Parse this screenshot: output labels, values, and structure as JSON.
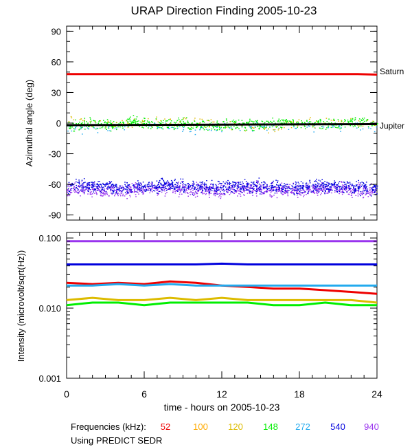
{
  "chart_data": [
    {
      "type": "scatter",
      "title": "URAP Direction Finding  2005-10-23",
      "ylabel": "Azimuthal angle (deg)",
      "xlim": [
        0,
        24
      ],
      "ylim": [
        -95,
        95
      ],
      "x_ticks": [
        0,
        6,
        12,
        18,
        24
      ],
      "y_ticks": [
        90,
        60,
        30,
        0,
        -30,
        -60,
        -90
      ],
      "y_tick_labels": [
        "90",
        "60",
        "30",
        "0",
        "-30",
        "-60",
        "-90"
      ],
      "reference_lines": [
        {
          "label": "Saturn",
          "color": "#ee0000",
          "x": [
            0,
            22.5,
            24
          ],
          "y": [
            48,
            48,
            47.5
          ]
        },
        {
          "label": "Jupiter",
          "color": "#000000",
          "x": [
            0,
            24
          ],
          "y": [
            -2,
            -1
          ]
        }
      ],
      "series": [
        {
          "color": "#9933ee",
          "x": [
            0,
            2,
            4,
            6,
            8,
            10,
            12,
            14,
            16,
            18,
            20,
            22,
            24
          ],
          "y": [
            -65,
            -64,
            -66,
            -65,
            -64,
            -65,
            -66,
            -64,
            -65,
            -66,
            -64,
            -65,
            -66
          ]
        },
        {
          "color": "#0000dd",
          "x": [
            0,
            2,
            4,
            6,
            8,
            10,
            12,
            14,
            16,
            18,
            20,
            22,
            24
          ],
          "y": [
            -62,
            -61,
            -63,
            -62,
            -61,
            -62,
            -63,
            -61,
            -62,
            -63,
            -61,
            -62,
            -63
          ]
        },
        {
          "color": "#00ee00",
          "x": [
            0.5,
            2,
            3.5,
            5,
            7,
            9,
            11,
            13,
            15,
            17,
            19,
            21,
            23,
            24
          ],
          "y": [
            -2,
            0,
            -3,
            2,
            -1,
            1,
            -3,
            0,
            -2,
            1,
            0,
            -1,
            2,
            -1
          ]
        },
        {
          "color": "#22aaee",
          "x": [
            3,
            7.5,
            10.5,
            11,
            14
          ],
          "y": [
            -5,
            -2,
            -8,
            -5,
            -3
          ]
        },
        {
          "color": "#ddbb00",
          "x": [
            1,
            3,
            6,
            9,
            13,
            16,
            18.5,
            22
          ],
          "y": [
            2,
            -1,
            1,
            3,
            -2,
            -4,
            3,
            1
          ]
        }
      ]
    },
    {
      "type": "line",
      "ylabel": "Intensity (microvolt/sqrt(Hz))",
      "xlabel": "time - hours on 2005-10-23",
      "xlim": [
        0,
        24
      ],
      "ylim": [
        0.001,
        0.12
      ],
      "y_scale": "log",
      "x_ticks": [
        0,
        6,
        12,
        18,
        24
      ],
      "x_tick_labels": [
        "0",
        "6",
        "12",
        "18",
        "24"
      ],
      "y_ticks": [
        0.1,
        0.01,
        0.001
      ],
      "y_tick_labels": [
        "0.100",
        "0.010",
        "0.001"
      ],
      "x": [
        0,
        2,
        4,
        6,
        8,
        10,
        12,
        14,
        16,
        18,
        20,
        22,
        24
      ],
      "series": [
        {
          "label": "940",
          "color": "#9933ee",
          "values": [
            0.09,
            0.09,
            0.09,
            0.09,
            0.09,
            0.09,
            0.09,
            0.09,
            0.09,
            0.09,
            0.09,
            0.09,
            0.09
          ]
        },
        {
          "label": "540",
          "color": "#0000dd",
          "values": [
            0.042,
            0.042,
            0.042,
            0.042,
            0.042,
            0.042,
            0.043,
            0.042,
            0.042,
            0.042,
            0.042,
            0.042,
            0.042
          ]
        },
        {
          "label": "52",
          "color": "#ee0000",
          "values": [
            0.023,
            0.022,
            0.023,
            0.022,
            0.024,
            0.023,
            0.021,
            0.02,
            0.019,
            0.019,
            0.018,
            0.017,
            0.016
          ]
        },
        {
          "label": "272",
          "color": "#22aaee",
          "values": [
            0.021,
            0.021,
            0.022,
            0.021,
            0.022,
            0.021,
            0.021,
            0.021,
            0.021,
            0.021,
            0.021,
            0.021,
            0.021
          ]
        },
        {
          "label": "120",
          "color": "#ddbb00",
          "values": [
            0.013,
            0.014,
            0.013,
            0.013,
            0.014,
            0.013,
            0.014,
            0.013,
            0.013,
            0.013,
            0.013,
            0.013,
            0.012
          ]
        },
        {
          "label": "148",
          "color": "#00ee00",
          "values": [
            0.011,
            0.012,
            0.012,
            0.011,
            0.012,
            0.012,
            0.012,
            0.012,
            0.011,
            0.011,
            0.012,
            0.011,
            0.011
          ]
        }
      ]
    }
  ],
  "labels": {
    "saturn": "Saturn",
    "jupiter": "Jupiter",
    "frequencies_label": "Frequencies (kHz):",
    "sedr_note": "Using PREDICT SEDR"
  },
  "legend": [
    {
      "label": "52",
      "color": "#ee0000"
    },
    {
      "label": "100",
      "color": "#ffaa00"
    },
    {
      "label": "120",
      "color": "#ddbb00"
    },
    {
      "label": "148",
      "color": "#00ee00"
    },
    {
      "label": "272",
      "color": "#22aaee"
    },
    {
      "label": "540",
      "color": "#0000dd"
    },
    {
      "label": "940",
      "color": "#9933ee"
    }
  ]
}
